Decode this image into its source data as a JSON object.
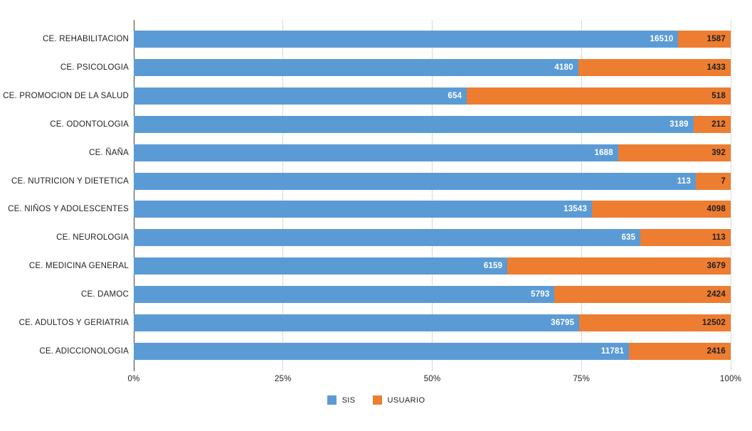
{
  "chart_data": {
    "type": "bar",
    "orientation": "horizontal",
    "stacking": "100%",
    "title": "",
    "xlabel": "",
    "ylabel": "",
    "categories": [
      "CE. REHABILITACION",
      "CE. PSICOLOGIA",
      "CE. PROMOCION DE LA SALUD",
      "CE. ODONTOLOGIA",
      "CE. ÑAÑA",
      "CE. NUTRICION Y DIETETICA",
      "CE. NIÑOS Y ADOLESCENTES",
      "CE. NEUROLOGIA",
      "CE. MEDICINA GENERAL",
      "CE. DAMOC",
      "CE. ADULTOS Y GERIATRIA",
      "CE. ADICCIONOLOGIA"
    ],
    "series": [
      {
        "name": "SIS",
        "color": "#5B9BD5",
        "label_color": "#FFFFFF",
        "values": [
          16510,
          4180,
          654,
          3189,
          1688,
          113,
          13543,
          635,
          6159,
          5793,
          36795,
          11781
        ]
      },
      {
        "name": "USUARIO",
        "color": "#ED7D31",
        "label_color": "#1F1F1F",
        "values": [
          1587,
          1433,
          518,
          212,
          392,
          7,
          4098,
          113,
          3679,
          2424,
          12502,
          2416
        ]
      }
    ],
    "x_axis": {
      "range_pct": [
        0,
        100
      ],
      "ticks": [
        "0%",
        "25%",
        "50%",
        "75%",
        "100%"
      ],
      "tick_positions_pct": [
        0,
        25,
        50,
        75,
        100
      ],
      "gridlines": true,
      "gridline_color": "#D9D9D9",
      "axis_line_color": "#404040"
    },
    "legend": {
      "position": "bottom",
      "entries": [
        {
          "label": "SIS",
          "color": "#5B9BD5"
        },
        {
          "label": "USUARIO",
          "color": "#ED7D31"
        }
      ]
    },
    "background": "#FFFFFF"
  }
}
